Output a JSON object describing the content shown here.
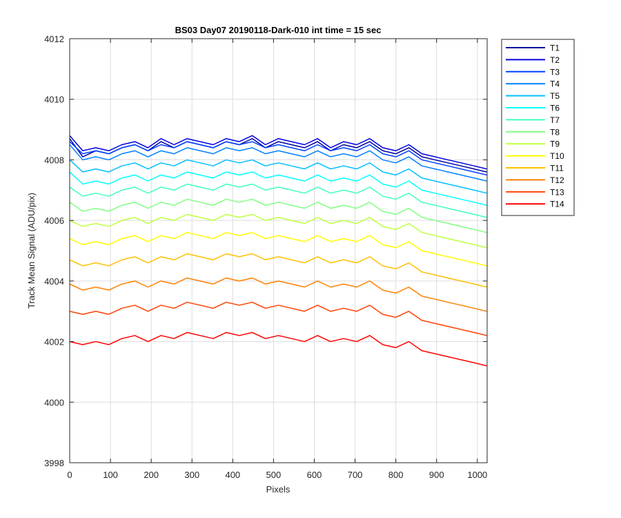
{
  "chart_data": {
    "type": "line",
    "title": "BS03 Day07 20190118-Dark-010 int time = 15 sec",
    "xlabel": "Pixels",
    "ylabel": "Track Mean Signal (ADU/pix)",
    "xlim": [
      0,
      1024
    ],
    "ylim": [
      3998,
      4012
    ],
    "xticks": [
      "0",
      "100",
      "200",
      "300",
      "400",
      "500",
      "600",
      "700",
      "800",
      "900",
      "1000"
    ],
    "yticks": [
      "3998",
      "4000",
      "4002",
      "4004",
      "4006",
      "4008",
      "4010",
      "4012"
    ],
    "grid": true,
    "legend_position": "outside-top-right",
    "x_points": [
      0,
      32,
      64,
      96,
      128,
      160,
      192,
      224,
      256,
      288,
      320,
      352,
      384,
      416,
      448,
      480,
      512,
      544,
      576,
      608,
      640,
      672,
      704,
      736,
      768,
      800,
      832,
      864,
      896,
      928,
      960,
      992,
      1023
    ],
    "series": [
      {
        "name": "T1",
        "color": "#0000a0",
        "values": [
          4008.7,
          4008.1,
          4008.3,
          4008.2,
          4008.4,
          4008.5,
          4008.3,
          4008.6,
          4008.4,
          4008.6,
          4008.5,
          4008.4,
          4008.6,
          4008.5,
          4008.7,
          4008.4,
          4008.6,
          4008.5,
          4008.4,
          4008.6,
          4008.3,
          4008.5,
          4008.4,
          4008.6,
          4008.3,
          4008.2,
          4008.4,
          4008.1,
          4008.0,
          4007.9,
          4007.8,
          4007.7,
          4007.6
        ]
      },
      {
        "name": "T2",
        "color": "#0000e0",
        "values": [
          4008.8,
          4008.3,
          4008.4,
          4008.3,
          4008.5,
          4008.6,
          4008.4,
          4008.7,
          4008.5,
          4008.7,
          4008.6,
          4008.5,
          4008.7,
          4008.6,
          4008.8,
          4008.5,
          4008.7,
          4008.6,
          4008.5,
          4008.7,
          4008.4,
          4008.6,
          4008.5,
          4008.7,
          4008.4,
          4008.3,
          4008.5,
          4008.2,
          4008.1,
          4008.0,
          4007.9,
          4007.8,
          4007.7
        ]
      },
      {
        "name": "T3",
        "color": "#0040ff",
        "values": [
          4008.6,
          4008.2,
          4008.3,
          4008.2,
          4008.4,
          4008.5,
          4008.3,
          4008.5,
          4008.4,
          4008.6,
          4008.5,
          4008.4,
          4008.6,
          4008.5,
          4008.6,
          4008.4,
          4008.5,
          4008.4,
          4008.3,
          4008.5,
          4008.3,
          4008.4,
          4008.3,
          4008.5,
          4008.2,
          4008.1,
          4008.3,
          4008.0,
          4007.9,
          4007.8,
          4007.7,
          4007.6,
          4007.5
        ]
      },
      {
        "name": "T4",
        "color": "#0080ff",
        "values": [
          4008.5,
          4008.0,
          4008.1,
          4008.0,
          4008.2,
          4008.3,
          4008.1,
          4008.3,
          4008.2,
          4008.4,
          4008.3,
          4008.2,
          4008.4,
          4008.3,
          4008.4,
          4008.2,
          4008.3,
          4008.2,
          4008.1,
          4008.3,
          4008.1,
          4008.2,
          4008.1,
          4008.3,
          4008.0,
          4007.9,
          4008.1,
          4007.8,
          4007.7,
          4007.6,
          4007.5,
          4007.4,
          4007.3
        ]
      },
      {
        "name": "T5",
        "color": "#00bfff",
        "values": [
          4008.0,
          4007.6,
          4007.7,
          4007.6,
          4007.8,
          4007.9,
          4007.7,
          4007.9,
          4007.8,
          4008.0,
          4007.9,
          4007.8,
          4008.0,
          4007.9,
          4008.0,
          4007.8,
          4007.9,
          4007.8,
          4007.7,
          4007.9,
          4007.7,
          4007.8,
          4007.7,
          4007.9,
          4007.6,
          4007.5,
          4007.7,
          4007.4,
          4007.3,
          4007.2,
          4007.1,
          4007.0,
          4006.9
        ]
      },
      {
        "name": "T6",
        "color": "#00ffff",
        "values": [
          4007.6,
          4007.2,
          4007.3,
          4007.2,
          4007.4,
          4007.5,
          4007.3,
          4007.5,
          4007.4,
          4007.6,
          4007.5,
          4007.4,
          4007.6,
          4007.5,
          4007.6,
          4007.4,
          4007.5,
          4007.4,
          4007.3,
          4007.5,
          4007.3,
          4007.4,
          4007.3,
          4007.5,
          4007.2,
          4007.1,
          4007.3,
          4007.0,
          4006.9,
          4006.8,
          4006.7,
          4006.6,
          4006.5
        ]
      },
      {
        "name": "T7",
        "color": "#40ffbf",
        "values": [
          4007.1,
          4006.8,
          4006.9,
          4006.8,
          4007.0,
          4007.1,
          4006.9,
          4007.1,
          4007.0,
          4007.2,
          4007.1,
          4007.0,
          4007.2,
          4007.1,
          4007.2,
          4007.0,
          4007.1,
          4007.0,
          4006.9,
          4007.1,
          4006.9,
          4007.0,
          4006.9,
          4007.1,
          4006.8,
          4006.7,
          4006.9,
          4006.6,
          4006.5,
          4006.4,
          4006.3,
          4006.2,
          4006.1
        ]
      },
      {
        "name": "T8",
        "color": "#80ff80",
        "values": [
          4006.6,
          4006.3,
          4006.4,
          4006.3,
          4006.5,
          4006.6,
          4006.4,
          4006.6,
          4006.5,
          4006.7,
          4006.6,
          4006.5,
          4006.7,
          4006.6,
          4006.7,
          4006.5,
          4006.6,
          4006.5,
          4006.4,
          4006.6,
          4006.4,
          4006.5,
          4006.4,
          4006.6,
          4006.3,
          4006.2,
          4006.4,
          4006.1,
          4006.0,
          4005.9,
          4005.8,
          4005.7,
          4005.6
        ]
      },
      {
        "name": "T9",
        "color": "#bfff40",
        "values": [
          4006.0,
          4005.8,
          4005.9,
          4005.8,
          4006.0,
          4006.1,
          4005.9,
          4006.1,
          4006.0,
          4006.2,
          4006.1,
          4006.0,
          4006.2,
          4006.1,
          4006.2,
          4006.0,
          4006.1,
          4006.0,
          4005.9,
          4006.1,
          4005.9,
          4006.0,
          4005.9,
          4006.1,
          4005.8,
          4005.7,
          4005.9,
          4005.6,
          4005.5,
          4005.4,
          4005.3,
          4005.2,
          4005.1
        ]
      },
      {
        "name": "T10",
        "color": "#ffff00",
        "values": [
          4005.4,
          4005.2,
          4005.3,
          4005.2,
          4005.4,
          4005.5,
          4005.3,
          4005.5,
          4005.4,
          4005.6,
          4005.5,
          4005.4,
          4005.6,
          4005.5,
          4005.6,
          4005.4,
          4005.5,
          4005.4,
          4005.3,
          4005.5,
          4005.3,
          4005.4,
          4005.3,
          4005.5,
          4005.2,
          4005.1,
          4005.3,
          4005.0,
          4004.9,
          4004.8,
          4004.7,
          4004.6,
          4004.5
        ]
      },
      {
        "name": "T11",
        "color": "#ffbf00",
        "values": [
          4004.7,
          4004.5,
          4004.6,
          4004.5,
          4004.7,
          4004.8,
          4004.6,
          4004.8,
          4004.7,
          4004.9,
          4004.8,
          4004.7,
          4004.9,
          4004.8,
          4004.9,
          4004.7,
          4004.8,
          4004.7,
          4004.6,
          4004.8,
          4004.6,
          4004.7,
          4004.6,
          4004.8,
          4004.5,
          4004.4,
          4004.6,
          4004.3,
          4004.2,
          4004.1,
          4004.0,
          4003.9,
          4003.8
        ]
      },
      {
        "name": "T12",
        "color": "#ff8000",
        "values": [
          4003.9,
          4003.7,
          4003.8,
          4003.7,
          4003.9,
          4004.0,
          4003.8,
          4004.0,
          4003.9,
          4004.1,
          4004.0,
          4003.9,
          4004.1,
          4004.0,
          4004.1,
          4003.9,
          4004.0,
          4003.9,
          4003.8,
          4004.0,
          4003.8,
          4003.9,
          4003.8,
          4004.0,
          4003.7,
          4003.6,
          4003.8,
          4003.5,
          4003.4,
          4003.3,
          4003.2,
          4003.1,
          4003.0
        ]
      },
      {
        "name": "T13",
        "color": "#ff4000",
        "values": [
          4003.0,
          4002.9,
          4003.0,
          4002.9,
          4003.1,
          4003.2,
          4003.0,
          4003.2,
          4003.1,
          4003.3,
          4003.2,
          4003.1,
          4003.3,
          4003.2,
          4003.3,
          4003.1,
          4003.2,
          4003.1,
          4003.0,
          4003.2,
          4003.0,
          4003.1,
          4003.0,
          4003.2,
          4002.9,
          4002.8,
          4003.0,
          4002.7,
          4002.6,
          4002.5,
          4002.4,
          4002.3,
          4002.2
        ]
      },
      {
        "name": "T14",
        "color": "#ff0000",
        "values": [
          4002.0,
          4001.9,
          4002.0,
          4001.9,
          4002.1,
          4002.2,
          4002.0,
          4002.2,
          4002.1,
          4002.3,
          4002.2,
          4002.1,
          4002.3,
          4002.2,
          4002.3,
          4002.1,
          4002.2,
          4002.1,
          4002.0,
          4002.2,
          4002.0,
          4002.1,
          4002.0,
          4002.2,
          4001.9,
          4001.8,
          4002.0,
          4001.7,
          4001.6,
          4001.5,
          4001.4,
          4001.3,
          4001.2
        ]
      }
    ]
  }
}
